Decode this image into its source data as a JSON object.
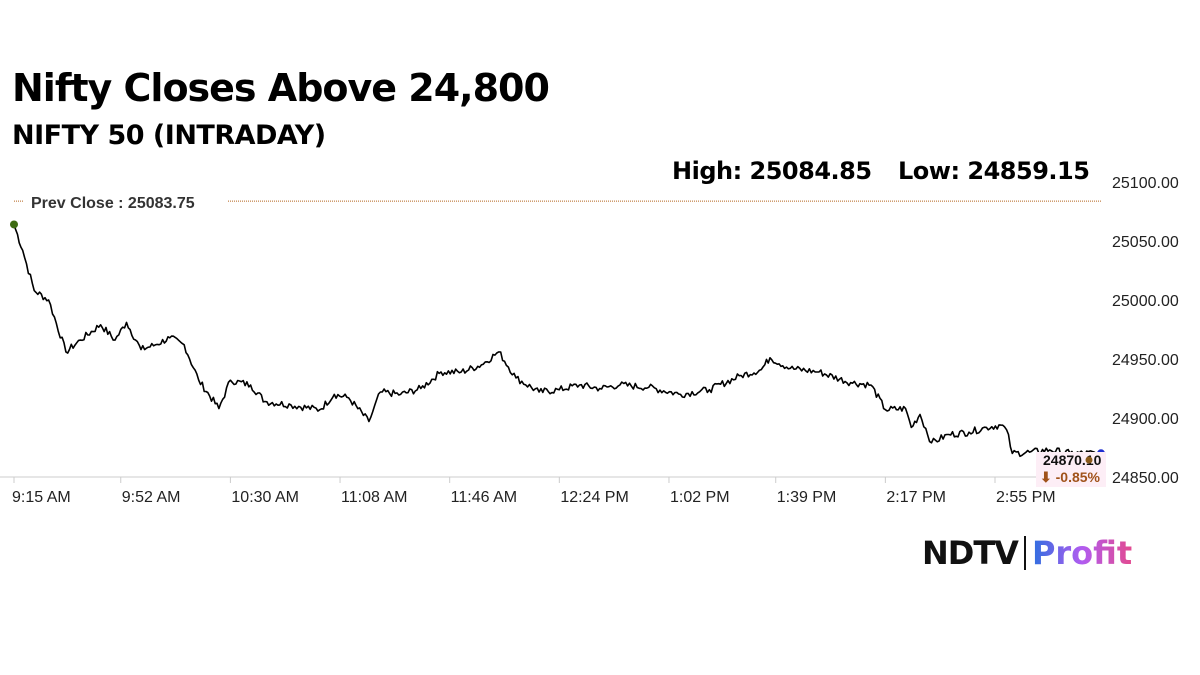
{
  "chart_data": {
    "type": "line",
    "title": "Nifty Closes Above 24,800",
    "subtitle": "NIFTY 50 (INTRADAY)",
    "high_label": "High: 25084.85",
    "low_label": "Low: 24859.15",
    "prev_close_label": "Prev Close : 25083.75",
    "prev_close": 25083.75,
    "last_value_label": "24870.10",
    "change_label": "⬇ -0.85%",
    "ylim": [
      24850,
      25100
    ],
    "y_ticks": [
      "25100.00",
      "25050.00",
      "25000.00",
      "24950.00",
      "24900.00",
      "24850.00"
    ],
    "y_tick_values": [
      25100,
      25050,
      25000,
      24950,
      24900,
      24850
    ],
    "x_ticks": [
      "9:15 AM",
      "9:52 AM",
      "10:30 AM",
      "11:08 AM",
      "11:46 AM",
      "12:24 PM",
      "1:02 PM",
      "1:39 PM",
      "2:17 PM",
      "2:55 PM"
    ],
    "x_tick_minutes": [
      0,
      37,
      75,
      113,
      151,
      189,
      227,
      264,
      302,
      340
    ],
    "x_range_minutes": [
      0,
      375
    ],
    "series": [
      {
        "name": "NIFTY 50",
        "color": "#000000",
        "points": [
          [
            0,
            25064
          ],
          [
            3,
            25042
          ],
          [
            7,
            25008
          ],
          [
            12,
            25000
          ],
          [
            18,
            24956
          ],
          [
            23,
            24966
          ],
          [
            30,
            24979
          ],
          [
            35,
            24966
          ],
          [
            39,
            24981
          ],
          [
            44,
            24958
          ],
          [
            49,
            24962
          ],
          [
            54,
            24968
          ],
          [
            59,
            24962
          ],
          [
            64,
            24932
          ],
          [
            71,
            24908
          ],
          [
            75,
            24932
          ],
          [
            82,
            24928
          ],
          [
            87,
            24914
          ],
          [
            96,
            24911
          ],
          [
            106,
            24907
          ],
          [
            111,
            24920
          ],
          [
            116,
            24917
          ],
          [
            123,
            24897
          ],
          [
            127,
            24922
          ],
          [
            134,
            24920
          ],
          [
            141,
            24925
          ],
          [
            148,
            24939
          ],
          [
            155,
            24939
          ],
          [
            162,
            24945
          ],
          [
            168,
            24956
          ],
          [
            174,
            24934
          ],
          [
            182,
            24922
          ],
          [
            189,
            24924
          ],
          [
            196,
            24928
          ],
          [
            203,
            24925
          ],
          [
            210,
            24928
          ],
          [
            220,
            24926
          ],
          [
            231,
            24920
          ],
          [
            241,
            24924
          ],
          [
            252,
            24936
          ],
          [
            259,
            24941
          ],
          [
            262,
            24951
          ],
          [
            269,
            24942
          ],
          [
            279,
            24939
          ],
          [
            290,
            24930
          ],
          [
            297,
            24928
          ],
          [
            302,
            24907
          ],
          [
            309,
            24908
          ],
          [
            311,
            24892
          ],
          [
            314,
            24903
          ],
          [
            318,
            24879
          ],
          [
            324,
            24886
          ],
          [
            331,
            24888
          ],
          [
            337,
            24892
          ],
          [
            342,
            24894
          ],
          [
            344,
            24890
          ],
          [
            346,
            24870
          ],
          [
            352,
            24871
          ],
          [
            359,
            24873
          ],
          [
            366,
            24870
          ],
          [
            375,
            24870.1
          ]
        ]
      }
    ],
    "colors": {
      "prev_close_line": "#b5651d",
      "start_dot": "#3d6b12",
      "end_dot": "#1f2fd0",
      "change": "#a0521a"
    }
  },
  "brand": {
    "ndtv": "NDTV",
    "profit": "Profit"
  }
}
